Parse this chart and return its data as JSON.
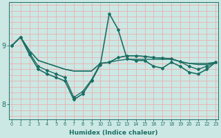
{
  "xlabel": "Humidex (Indice chaleur)",
  "bg_color": "#cce8e4",
  "line_color": "#1a6e64",
  "grid_color_v": "#e8b0b0",
  "grid_color_h": "#e8b0b0",
  "x_ticks": [
    0,
    1,
    2,
    3,
    4,
    5,
    6,
    7,
    8,
    9,
    10,
    11,
    12,
    13,
    14,
    15,
    16,
    17,
    18,
    19,
    20,
    21,
    22,
    23
  ],
  "y_ticks": [
    8,
    9
  ],
  "ylim": [
    7.75,
    9.75
  ],
  "xlim": [
    -0.3,
    23.3
  ],
  "series": [
    {
      "x": [
        0,
        1,
        2,
        3,
        4,
        5,
        6,
        7,
        8,
        9,
        10,
        11,
        12,
        13,
        14,
        15,
        16,
        17,
        18,
        19,
        20,
        21,
        22,
        23
      ],
      "y": [
        9.0,
        9.15,
        8.92,
        8.75,
        8.7,
        8.65,
        8.6,
        8.57,
        8.57,
        8.57,
        8.7,
        8.72,
        8.75,
        8.77,
        8.77,
        8.77,
        8.77,
        8.77,
        8.77,
        8.73,
        8.7,
        8.7,
        8.7,
        8.72
      ],
      "marker": null,
      "linewidth": 1.0,
      "linestyle": "-"
    },
    {
      "x": [
        0,
        1,
        2,
        3,
        4,
        5,
        6,
        7,
        8,
        9,
        10,
        11,
        12,
        13,
        14,
        15,
        16,
        17,
        18,
        19,
        20,
        21,
        22,
        23
      ],
      "y": [
        9.0,
        9.15,
        8.92,
        8.75,
        8.7,
        8.65,
        8.6,
        8.57,
        8.57,
        8.57,
        8.7,
        8.72,
        8.8,
        8.83,
        8.83,
        8.82,
        8.8,
        8.79,
        8.78,
        8.73,
        8.7,
        8.68,
        8.68,
        8.72
      ],
      "marker": null,
      "linewidth": 1.0,
      "linestyle": "-"
    },
    {
      "x": [
        0,
        1,
        2,
        3,
        4,
        5,
        6,
        7,
        8,
        9,
        10,
        11,
        12,
        13,
        14,
        15,
        16,
        17,
        18,
        19,
        20,
        21,
        22,
        23
      ],
      "y": [
        9.0,
        9.15,
        8.88,
        8.65,
        8.58,
        8.52,
        8.46,
        8.12,
        8.22,
        8.42,
        8.7,
        8.72,
        8.8,
        8.83,
        8.83,
        8.82,
        8.8,
        8.79,
        8.78,
        8.73,
        8.65,
        8.6,
        8.65,
        8.72
      ],
      "marker": "D",
      "linewidth": 1.0,
      "linestyle": "-",
      "markersize": 2.0
    },
    {
      "x": [
        0,
        1,
        2,
        3,
        4,
        5,
        6,
        7,
        8,
        9,
        10,
        11,
        12,
        13,
        14,
        15,
        16,
        17,
        18,
        19,
        20,
        21,
        22,
        23
      ],
      "y": [
        9.0,
        9.15,
        8.85,
        8.6,
        8.52,
        8.46,
        8.4,
        8.08,
        8.18,
        8.4,
        8.68,
        9.55,
        9.28,
        8.78,
        8.75,
        8.75,
        8.65,
        8.62,
        8.72,
        8.65,
        8.55,
        8.52,
        8.6,
        8.72
      ],
      "marker": "D",
      "linewidth": 1.2,
      "linestyle": "-",
      "markersize": 2.0
    }
  ]
}
